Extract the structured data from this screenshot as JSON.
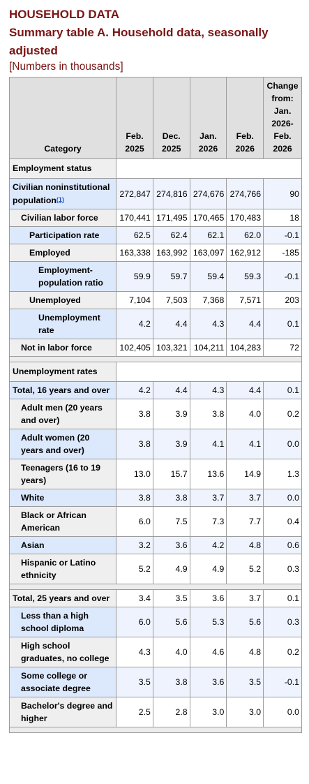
{
  "header": {
    "title": "HOUSEHOLD DATA",
    "subtitle": "Summary table A. Household data, seasonally adjusted",
    "units": "[Numbers in thousands]"
  },
  "columns": {
    "category": "Category",
    "c1_l1": "Feb.",
    "c1_l2": "2025",
    "c2_l1": "Dec.",
    "c2_l2": "2025",
    "c3_l1": "Jan.",
    "c3_l2": "2026",
    "c4_l1": "Feb.",
    "c4_l2": "2026",
    "c5_l1": "Change",
    "c5_l2": "from:",
    "c5_l3": "Jan.",
    "c5_l4": "2026-",
    "c5_l5": "Feb.",
    "c5_l6": "2026"
  },
  "sections": {
    "employment_status": "Employment status",
    "unemployment_rates": "Unemployment rates"
  },
  "footnote_marker": "(1)",
  "rows": [
    {
      "label": "Civilian noninstitutional population",
      "values": [
        "272,847",
        "274,816",
        "274,676",
        "274,766",
        "90"
      ]
    },
    {
      "label": "Civilian labor force",
      "values": [
        "170,441",
        "171,495",
        "170,465",
        "170,483",
        "18"
      ]
    },
    {
      "label": "Participation rate",
      "values": [
        "62.5",
        "62.4",
        "62.1",
        "62.0",
        "-0.1"
      ]
    },
    {
      "label": "Employed",
      "values": [
        "163,338",
        "163,992",
        "163,097",
        "162,912",
        "-185"
      ]
    },
    {
      "label": "Employment-population ratio",
      "values": [
        "59.9",
        "59.7",
        "59.4",
        "59.3",
        "-0.1"
      ]
    },
    {
      "label": "Unemployed",
      "values": [
        "7,104",
        "7,503",
        "7,368",
        "7,571",
        "203"
      ]
    },
    {
      "label": "Unemployment rate",
      "values": [
        "4.2",
        "4.4",
        "4.3",
        "4.4",
        "0.1"
      ]
    },
    {
      "label": "Not in labor force",
      "values": [
        "102,405",
        "103,321",
        "104,211",
        "104,283",
        "72"
      ]
    },
    {
      "label": "Total, 16 years and over",
      "values": [
        "4.2",
        "4.4",
        "4.3",
        "4.4",
        "0.1"
      ]
    },
    {
      "label": "Adult men (20 years and over)",
      "values": [
        "3.8",
        "3.9",
        "3.8",
        "4.0",
        "0.2"
      ]
    },
    {
      "label": "Adult women (20 years and over)",
      "values": [
        "3.8",
        "3.9",
        "4.1",
        "4.1",
        "0.0"
      ]
    },
    {
      "label": "Teenagers (16 to 19 years)",
      "values": [
        "13.0",
        "15.7",
        "13.6",
        "14.9",
        "1.3"
      ]
    },
    {
      "label": "White",
      "values": [
        "3.8",
        "3.8",
        "3.7",
        "3.7",
        "0.0"
      ]
    },
    {
      "label": "Black or African American",
      "values": [
        "6.0",
        "7.5",
        "7.3",
        "7.7",
        "0.4"
      ]
    },
    {
      "label": "Asian",
      "values": [
        "3.2",
        "3.6",
        "4.2",
        "4.8",
        "0.6"
      ]
    },
    {
      "label": "Hispanic or Latino ethnicity",
      "values": [
        "5.2",
        "4.9",
        "4.9",
        "5.2",
        "0.3"
      ]
    },
    {
      "label": "Total, 25 years and over",
      "values": [
        "3.4",
        "3.5",
        "3.6",
        "3.7",
        "0.1"
      ]
    },
    {
      "label": "Less than a high school diploma",
      "values": [
        "6.0",
        "5.6",
        "5.3",
        "5.6",
        "0.3"
      ]
    },
    {
      "label": "High school graduates, no college",
      "values": [
        "4.3",
        "4.0",
        "4.6",
        "4.8",
        "0.2"
      ]
    },
    {
      "label": "Some college or associate degree",
      "values": [
        "3.5",
        "3.8",
        "3.6",
        "3.5",
        "-0.1"
      ]
    },
    {
      "label": "Bachelor's degree and higher",
      "values": [
        "2.5",
        "2.8",
        "3.0",
        "3.0",
        "0.0"
      ]
    }
  ]
}
